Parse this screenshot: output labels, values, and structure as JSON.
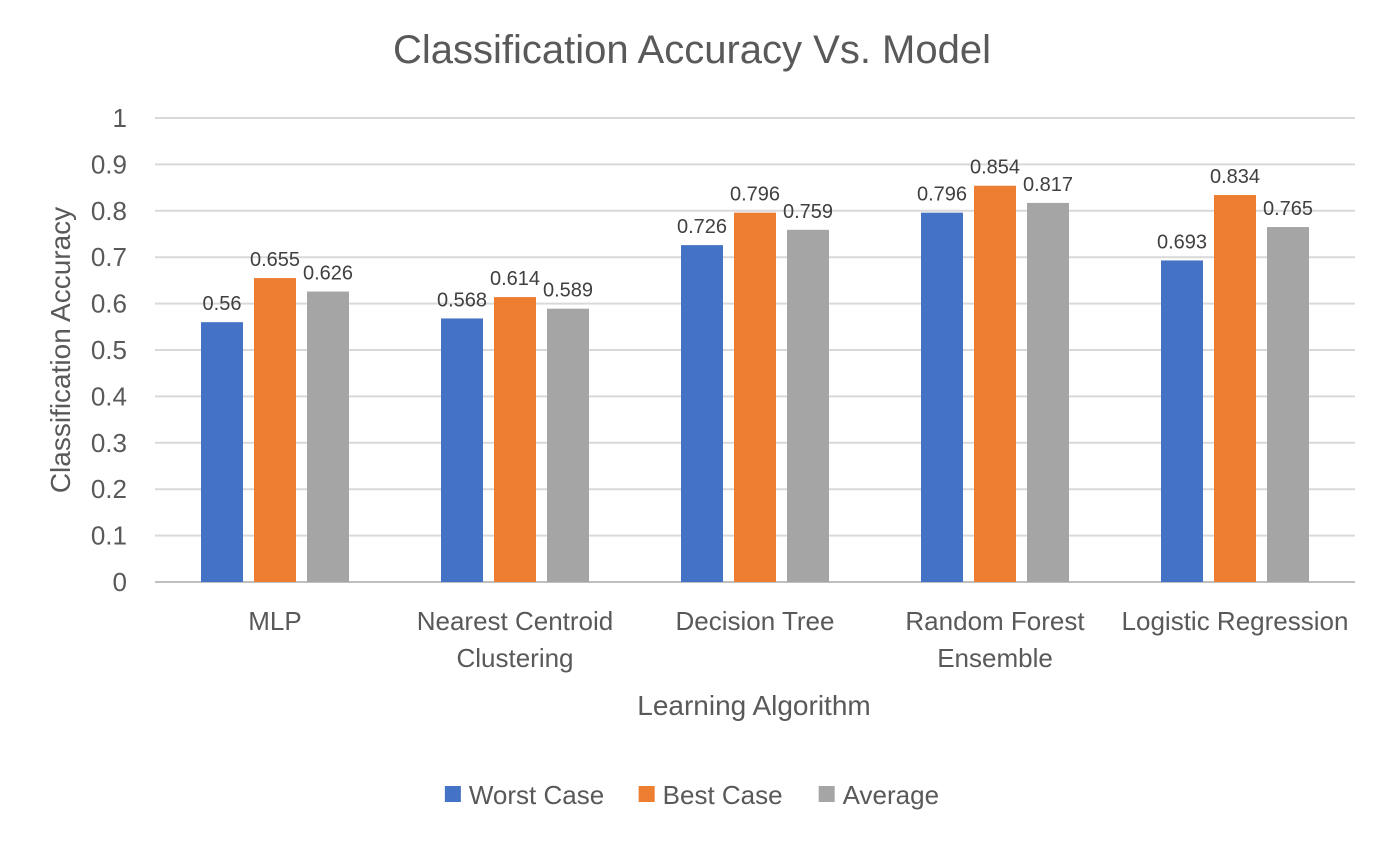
{
  "chart_data": {
    "type": "bar",
    "title": "Classification Accuracy Vs. Model",
    "xlabel": "Learning Algorithm",
    "ylabel": "Classification Accuracy",
    "ylim": [
      0,
      1
    ],
    "yticks": [
      "0",
      "0.1",
      "0.2",
      "0.3",
      "0.4",
      "0.5",
      "0.6",
      "0.7",
      "0.8",
      "0.9",
      "1"
    ],
    "grid": true,
    "legend_position": "bottom",
    "categories": [
      [
        "MLP"
      ],
      [
        "Nearest Centroid",
        "Clustering"
      ],
      [
        "Decision Tree"
      ],
      [
        "Random Forest",
        "Ensemble"
      ],
      [
        "Logistic Regression"
      ]
    ],
    "series": [
      {
        "name": "Worst Case",
        "color": "#4472C4",
        "values": [
          0.56,
          0.568,
          0.726,
          0.796,
          0.693
        ],
        "labels": [
          "0.56",
          "0.568",
          "0.726",
          "0.796",
          "0.693"
        ]
      },
      {
        "name": "Best Case",
        "color": "#ED7D31",
        "values": [
          0.655,
          0.614,
          0.796,
          0.854,
          0.834
        ],
        "labels": [
          "0.655",
          "0.614",
          "0.796",
          "0.854",
          "0.834"
        ]
      },
      {
        "name": "Average",
        "color": "#A5A5A5",
        "values": [
          0.626,
          0.589,
          0.759,
          0.817,
          0.765
        ],
        "labels": [
          "0.626",
          "0.589",
          "0.759",
          "0.817",
          "0.765"
        ]
      }
    ]
  }
}
